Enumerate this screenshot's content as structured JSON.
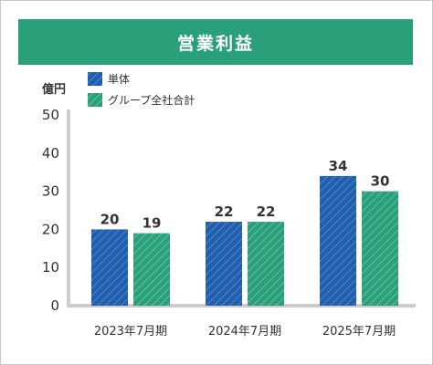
{
  "chart_data": {
    "type": "bar",
    "title": "営業利益",
    "ylabel": "億円",
    "ylim": [
      0,
      50
    ],
    "yticks": [
      0,
      10,
      20,
      30,
      40,
      50
    ],
    "categories": [
      "2023年7月期",
      "2024年7月期",
      "2025年7月期"
    ],
    "series": [
      {
        "name": "単体",
        "values": [
          20,
          22,
          34
        ],
        "color": "#1f5fae"
      },
      {
        "name": "グループ全社合計",
        "values": [
          19,
          22,
          30
        ],
        "color": "#2aa07a"
      }
    ],
    "legend_position": "top-left",
    "grid": false
  }
}
